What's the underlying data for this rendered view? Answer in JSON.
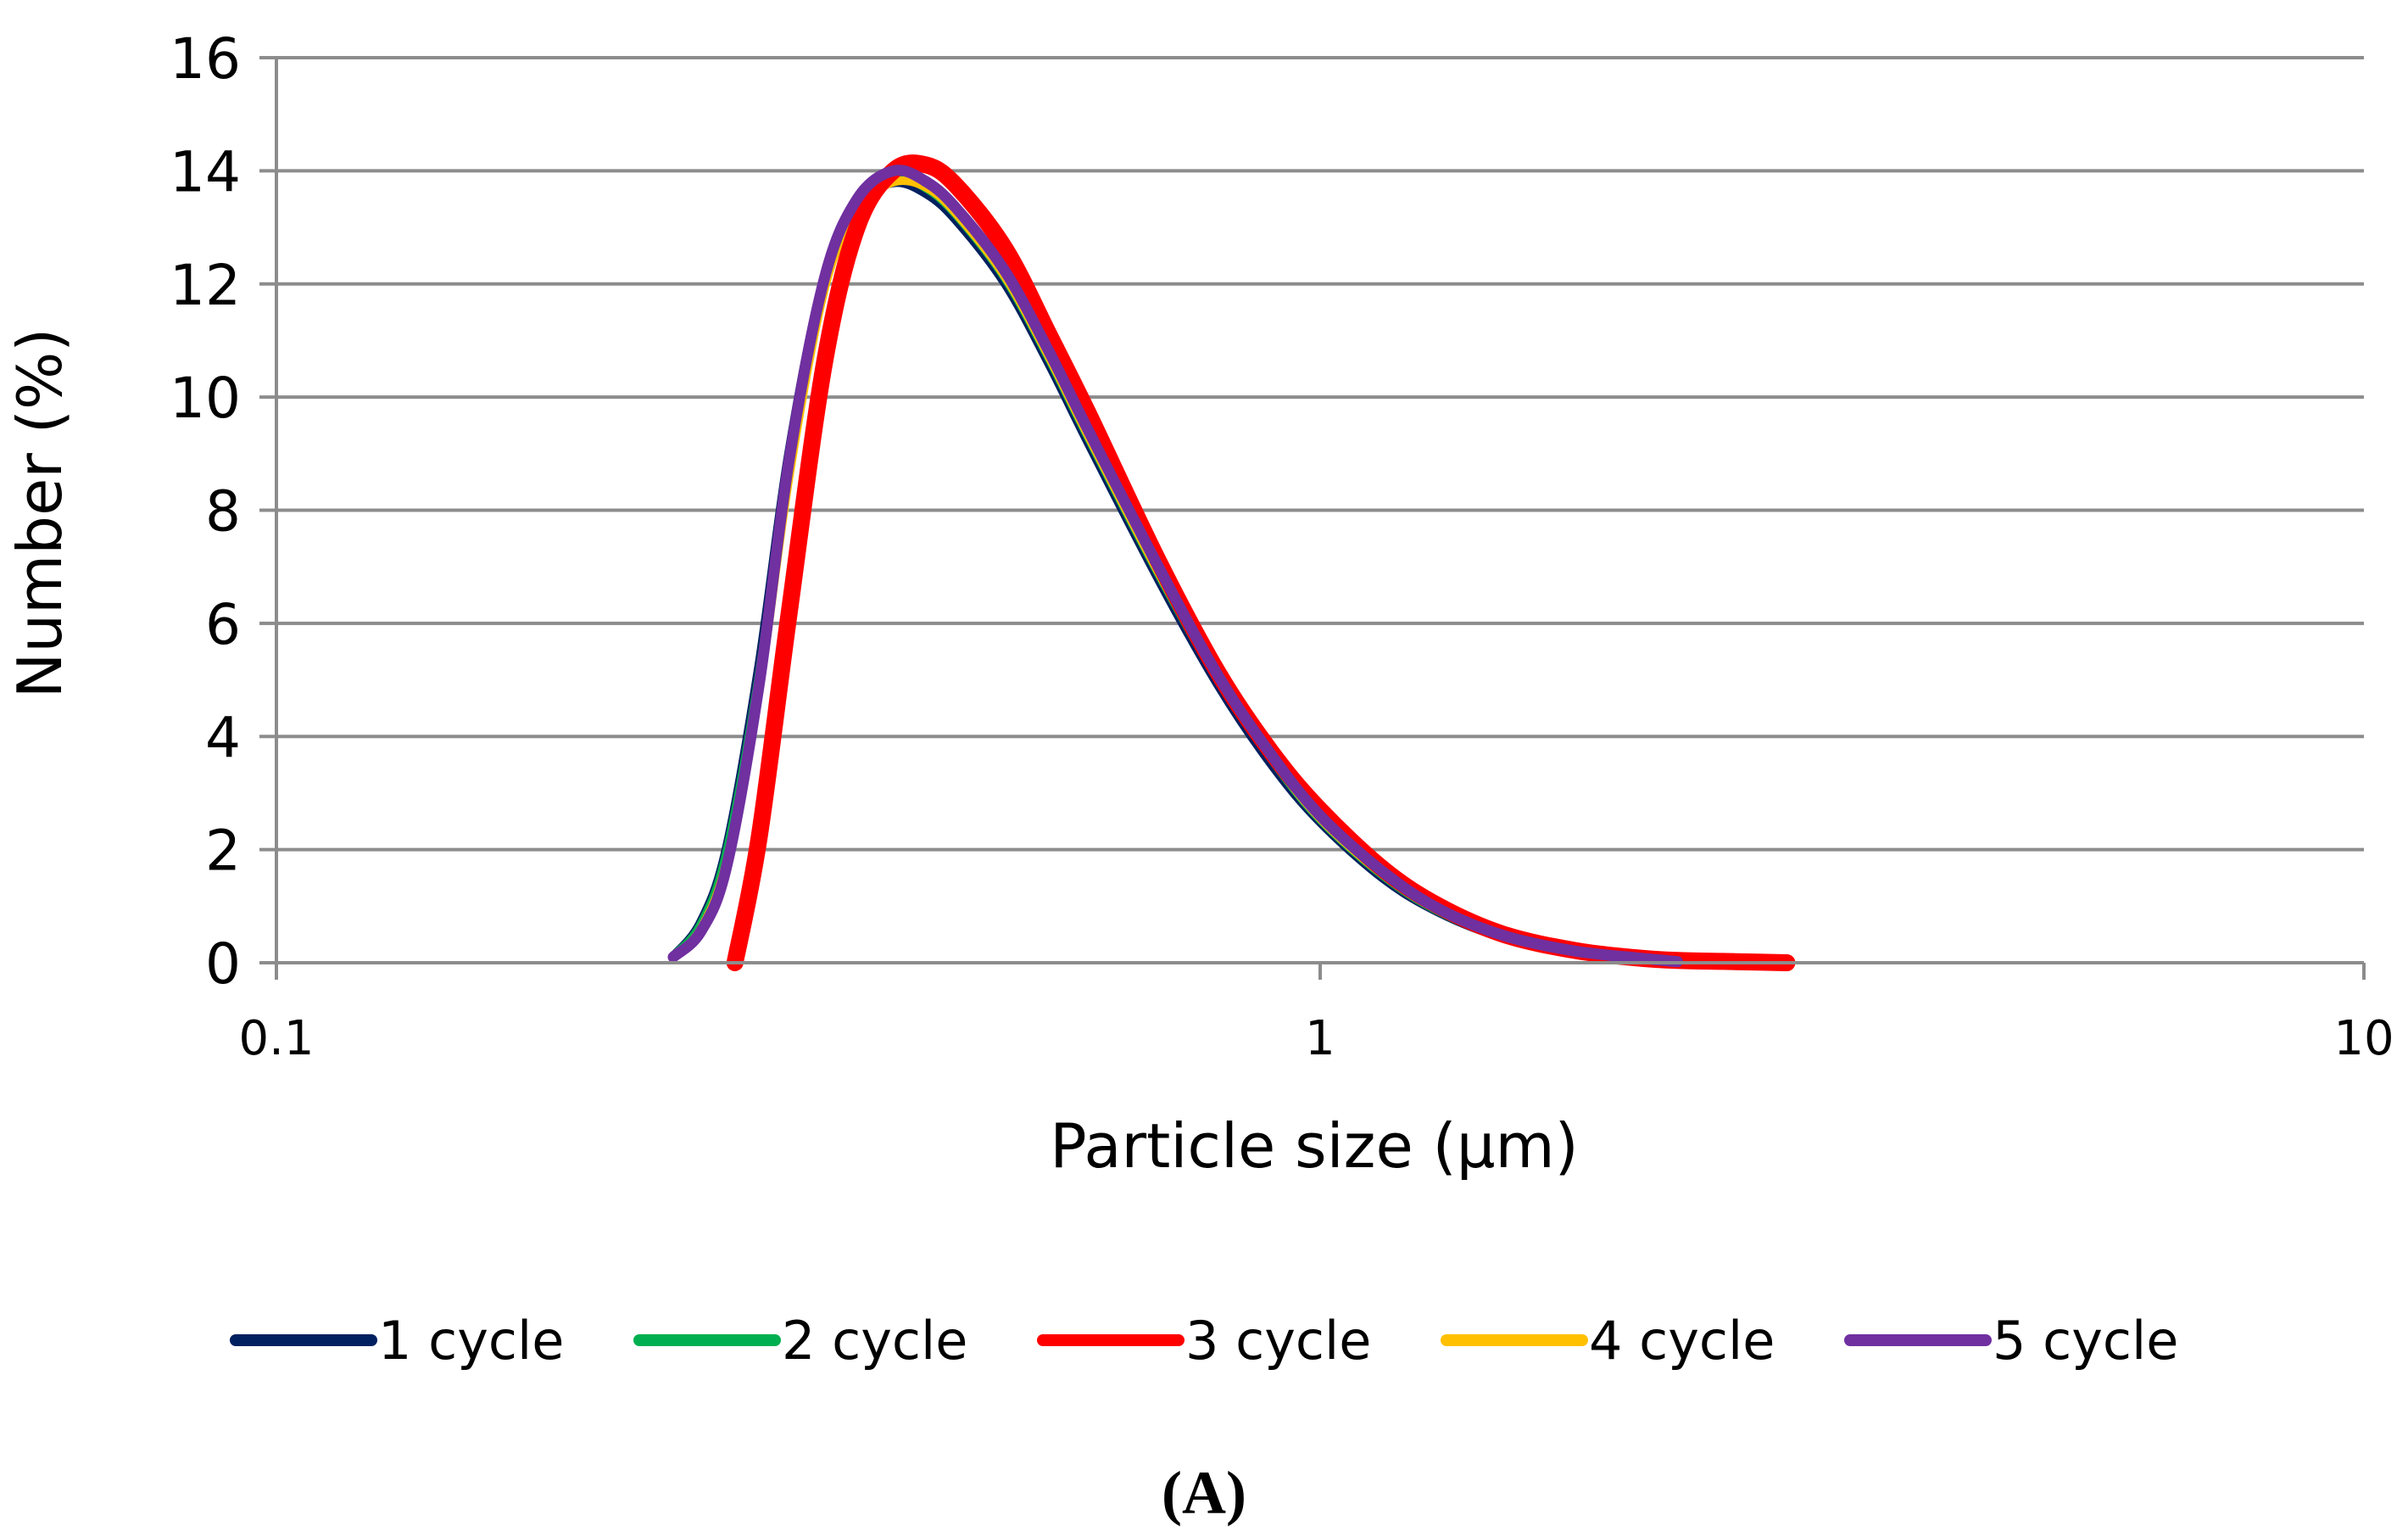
{
  "chart_data": {
    "type": "line",
    "title": "",
    "xlabel": "Particle size (µm)",
    "ylabel": "Number (%)",
    "xscale": "log",
    "xlim": [
      0.1,
      10
    ],
    "ylim": [
      0,
      16
    ],
    "xticks": [
      0.1,
      1,
      10
    ],
    "xtick_labels": [
      "0.1",
      "1",
      "10"
    ],
    "yticks": [
      0,
      2,
      4,
      6,
      8,
      10,
      12,
      14,
      16
    ],
    "ytick_labels": [
      "0",
      "2",
      "4",
      "6",
      "8",
      "10",
      "12",
      "14",
      "16"
    ],
    "grid": "horizontal",
    "legend_position": "bottom",
    "panel_label": "(A)",
    "series": [
      {
        "name": "1 cycle",
        "color": "#002060",
        "x": [
          0.24,
          0.255,
          0.27,
          0.29,
          0.31,
          0.335,
          0.36,
          0.39,
          0.42,
          0.45,
          0.5,
          0.55,
          0.6,
          0.7,
          0.8,
          0.9,
          1.0,
          1.15,
          1.3,
          1.5,
          1.75,
          2.0,
          2.2
        ],
        "y": [
          0.1,
          0.7,
          2.0,
          5.2,
          9.0,
          12.1,
          13.4,
          13.8,
          13.6,
          13.1,
          12.0,
          10.6,
          9.2,
          6.8,
          4.9,
          3.5,
          2.5,
          1.5,
          0.9,
          0.45,
          0.2,
          0.08,
          0.02
        ]
      },
      {
        "name": "2 cycle",
        "color": "#00B050",
        "x": [
          0.24,
          0.255,
          0.27,
          0.29,
          0.31,
          0.335,
          0.36,
          0.39,
          0.42,
          0.45,
          0.5,
          0.55,
          0.6,
          0.7,
          0.8,
          0.9,
          1.0,
          1.15,
          1.3,
          1.5,
          1.75,
          2.0,
          2.2
        ],
        "y": [
          0.1,
          0.65,
          1.9,
          5.0,
          8.8,
          12.0,
          13.4,
          13.9,
          13.7,
          13.2,
          12.1,
          10.7,
          9.3,
          6.9,
          5.0,
          3.6,
          2.55,
          1.55,
          0.92,
          0.46,
          0.2,
          0.08,
          0.02
        ]
      },
      {
        "name": "3 cycle",
        "color": "#FF0000",
        "x": [
          0.275,
          0.29,
          0.31,
          0.335,
          0.36,
          0.39,
          0.42,
          0.45,
          0.5,
          0.55,
          0.6,
          0.7,
          0.8,
          0.9,
          1.0,
          1.15,
          1.3,
          1.5,
          1.75,
          2.0,
          2.2,
          2.5,
          2.8
        ],
        "y": [
          0.0,
          2.2,
          6.2,
          10.6,
          13.0,
          14.0,
          14.1,
          13.7,
          12.6,
          11.1,
          9.7,
          7.1,
          5.1,
          3.7,
          2.7,
          1.65,
          1.0,
          0.5,
          0.22,
          0.09,
          0.04,
          0.02,
          0.0
        ]
      },
      {
        "name": "4 cycle",
        "color": "#FFC000",
        "x": [
          0.24,
          0.255,
          0.27,
          0.29,
          0.31,
          0.335,
          0.36,
          0.39,
          0.42,
          0.45,
          0.5,
          0.55,
          0.6,
          0.7,
          0.8,
          0.9,
          1.0,
          1.15,
          1.3,
          1.5,
          1.75,
          2.0,
          2.2
        ],
        "y": [
          0.1,
          0.6,
          1.8,
          4.8,
          8.6,
          11.9,
          13.3,
          13.8,
          13.7,
          13.2,
          12.1,
          10.7,
          9.3,
          6.9,
          5.0,
          3.6,
          2.55,
          1.55,
          0.92,
          0.46,
          0.2,
          0.08,
          0.02
        ]
      },
      {
        "name": "5 cycle",
        "color": "#7030A0",
        "x": [
          0.24,
          0.255,
          0.27,
          0.29,
          0.31,
          0.335,
          0.36,
          0.39,
          0.42,
          0.45,
          0.5,
          0.55,
          0.6,
          0.7,
          0.8,
          0.9,
          1.0,
          1.15,
          1.3,
          1.5,
          1.75,
          2.0,
          2.2
        ],
        "y": [
          0.1,
          0.55,
          1.7,
          4.9,
          8.9,
          12.1,
          13.5,
          14.0,
          13.8,
          13.3,
          12.2,
          10.8,
          9.4,
          7.0,
          5.05,
          3.65,
          2.6,
          1.6,
          0.95,
          0.48,
          0.21,
          0.09,
          0.02
        ]
      }
    ]
  }
}
